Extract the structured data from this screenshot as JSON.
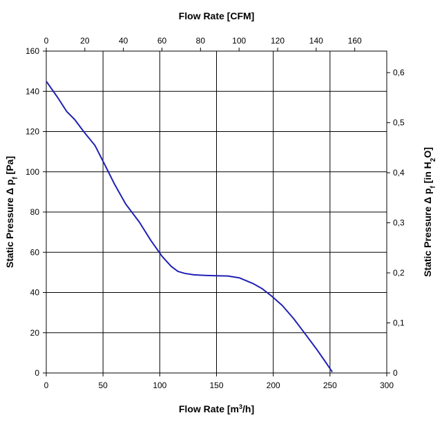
{
  "chart_data": {
    "type": "line",
    "title": "",
    "xlabel": "Flow Rate [m³/h]",
    "ylabel": "Static Pressure Δ pf [Pa]",
    "x2label": "Flow Rate [CFM]",
    "y2label": "Static Pressure Δ pf [in H2O]",
    "xlim": [
      0,
      300
    ],
    "ylim": [
      0,
      160
    ],
    "x2lim": [
      0,
      176.6
    ],
    "y2lim": [
      0,
      0.643
    ],
    "xticks": [
      "0",
      "50",
      "100",
      "150",
      "200",
      "250",
      "300"
    ],
    "yticks": [
      "0",
      "20",
      "40",
      "60",
      "80",
      "100",
      "120",
      "140",
      "160"
    ],
    "x2ticks": [
      "0",
      "20",
      "40",
      "60",
      "80",
      "100",
      "120",
      "140",
      "160"
    ],
    "y2ticks": [
      "0",
      "0,1",
      "0,2",
      "0,3",
      "0,4",
      "0,5",
      "0,6"
    ],
    "grid": true,
    "legend": "none",
    "line_color": "#1f1fb4",
    "series": [
      {
        "x": [
          0,
          10,
          18,
          25,
          33,
          43,
          52,
          60,
          70,
          82,
          92,
          102,
          110,
          116,
          122,
          130,
          140,
          150,
          160,
          170,
          182,
          190,
          198,
          208,
          218,
          228,
          238,
          246,
          252
        ],
        "values": [
          145,
          137,
          130,
          126,
          120,
          113,
          103,
          94,
          84,
          75,
          66,
          58,
          53,
          50.5,
          49.5,
          48.8,
          48.5,
          48.3,
          48.2,
          47.3,
          44.5,
          42,
          38.5,
          33.5,
          27,
          19.5,
          12,
          5.5,
          0.5
        ]
      }
    ]
  }
}
